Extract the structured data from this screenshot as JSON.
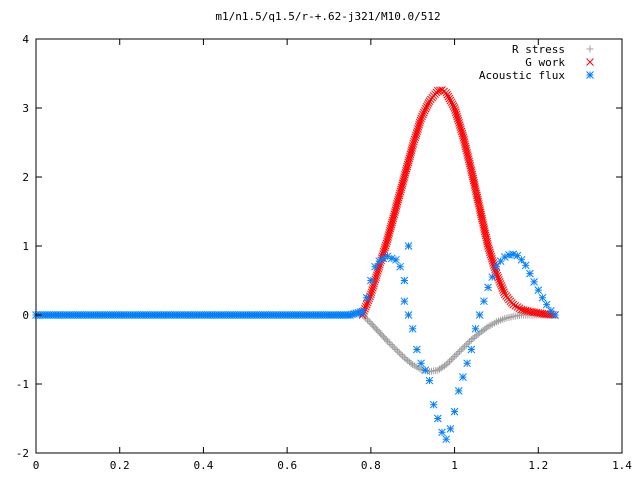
{
  "chart_data": {
    "type": "scatter",
    "title": "m1/n1.5/q1.5/r-+.62-j321/M10.0/512",
    "xlabel": "",
    "ylabel": "",
    "xlim": [
      0,
      1.4
    ],
    "ylim": [
      -2,
      4
    ],
    "x_ticks": [
      "0",
      "0.2",
      "0.4",
      "0.6",
      "0.8",
      "1",
      "1.2",
      "1.4"
    ],
    "y_ticks": [
      "-2",
      "-1",
      "0",
      "1",
      "2",
      "3",
      "4"
    ],
    "legend_position": "top-right",
    "grid": false,
    "series": [
      {
        "name": "R stress",
        "marker": "plus",
        "color": "#a0a0a0",
        "points": [
          [
            0.78,
            0.0
          ],
          [
            0.8,
            -0.12
          ],
          [
            0.82,
            -0.25
          ],
          [
            0.84,
            -0.38
          ],
          [
            0.86,
            -0.5
          ],
          [
            0.88,
            -0.62
          ],
          [
            0.9,
            -0.72
          ],
          [
            0.92,
            -0.79
          ],
          [
            0.94,
            -0.82
          ],
          [
            0.96,
            -0.8
          ],
          [
            0.98,
            -0.72
          ],
          [
            1.0,
            -0.6
          ],
          [
            1.02,
            -0.48
          ],
          [
            1.04,
            -0.36
          ],
          [
            1.06,
            -0.26
          ],
          [
            1.08,
            -0.17
          ],
          [
            1.1,
            -0.1
          ],
          [
            1.12,
            -0.05
          ],
          [
            1.14,
            -0.02
          ],
          [
            1.16,
            0.0
          ],
          [
            1.2,
            0.0
          ],
          [
            1.24,
            0.0
          ]
        ]
      },
      {
        "name": "G work",
        "marker": "cross",
        "color": "#ff0000",
        "points": [
          [
            0.78,
            0.0
          ],
          [
            0.8,
            0.3
          ],
          [
            0.82,
            0.7
          ],
          [
            0.84,
            1.1
          ],
          [
            0.86,
            1.55
          ],
          [
            0.88,
            2.0
          ],
          [
            0.9,
            2.45
          ],
          [
            0.92,
            2.85
          ],
          [
            0.94,
            3.1
          ],
          [
            0.96,
            3.25
          ],
          [
            0.97,
            3.26
          ],
          [
            0.98,
            3.22
          ],
          [
            1.0,
            3.0
          ],
          [
            1.02,
            2.6
          ],
          [
            1.04,
            2.1
          ],
          [
            1.06,
            1.55
          ],
          [
            1.08,
            1.0
          ],
          [
            1.1,
            0.6
          ],
          [
            1.12,
            0.3
          ],
          [
            1.14,
            0.15
          ],
          [
            1.16,
            0.08
          ],
          [
            1.18,
            0.05
          ],
          [
            1.2,
            0.03
          ],
          [
            1.22,
            0.01
          ],
          [
            1.24,
            0.0
          ]
        ]
      },
      {
        "name": "Acoustic flux",
        "marker": "star",
        "color": "#0080ff",
        "points": [
          [
            0.78,
            0.05
          ],
          [
            0.79,
            0.25
          ],
          [
            0.8,
            0.5
          ],
          [
            0.81,
            0.7
          ],
          [
            0.82,
            0.78
          ],
          [
            0.83,
            0.82
          ],
          [
            0.84,
            0.85
          ],
          [
            0.85,
            0.82
          ],
          [
            0.86,
            0.8
          ],
          [
            0.87,
            0.7
          ],
          [
            0.88,
            0.5
          ],
          [
            0.89,
            1.0
          ],
          [
            0.88,
            0.2
          ],
          [
            0.89,
            0.0
          ],
          [
            0.9,
            -0.2
          ],
          [
            0.91,
            -0.5
          ],
          [
            0.92,
            -0.7
          ],
          [
            0.93,
            -0.8
          ],
          [
            0.94,
            -0.95
          ],
          [
            0.95,
            -1.3
          ],
          [
            0.96,
            -1.5
          ],
          [
            0.97,
            -1.7
          ],
          [
            0.98,
            -1.8
          ],
          [
            0.99,
            -1.65
          ],
          [
            1.0,
            -1.4
          ],
          [
            1.01,
            -1.1
          ],
          [
            1.02,
            -0.9
          ],
          [
            1.03,
            -0.7
          ],
          [
            1.04,
            -0.5
          ],
          [
            1.05,
            -0.2
          ],
          [
            1.06,
            0.0
          ],
          [
            1.07,
            0.2
          ],
          [
            1.08,
            0.4
          ],
          [
            1.09,
            0.55
          ],
          [
            1.1,
            0.7
          ],
          [
            1.11,
            0.78
          ],
          [
            1.12,
            0.84
          ],
          [
            1.13,
            0.87
          ],
          [
            1.14,
            0.88
          ],
          [
            1.15,
            0.86
          ],
          [
            1.16,
            0.8
          ],
          [
            1.17,
            0.72
          ],
          [
            1.18,
            0.6
          ],
          [
            1.19,
            0.48
          ],
          [
            1.2,
            0.36
          ],
          [
            1.21,
            0.25
          ],
          [
            1.22,
            0.15
          ],
          [
            1.23,
            0.06
          ],
          [
            1.24,
            0.0
          ],
          [
            0.0,
            0.0
          ],
          [
            0.1,
            0.0
          ],
          [
            0.2,
            0.0
          ],
          [
            0.3,
            0.0
          ],
          [
            0.4,
            0.0
          ],
          [
            0.5,
            0.0
          ],
          [
            0.6,
            0.0
          ],
          [
            0.7,
            0.0
          ],
          [
            0.75,
            0.0
          ]
        ]
      }
    ]
  }
}
